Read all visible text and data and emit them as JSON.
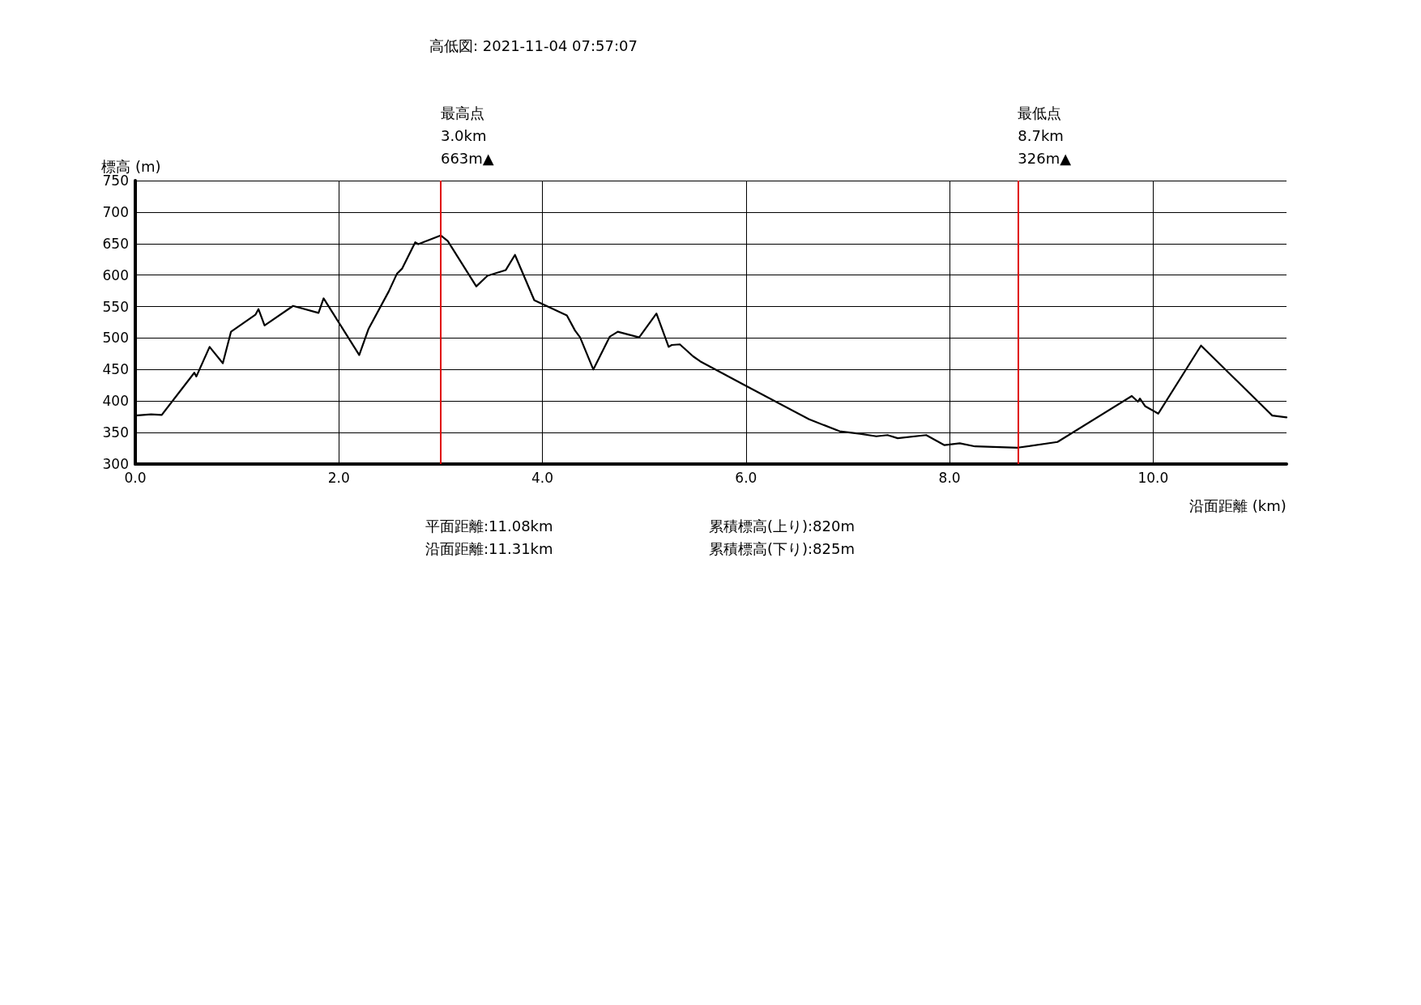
{
  "chart_data": {
    "type": "line",
    "title": "高低図: 2021-11-04 07:57:07",
    "xlabel": "沿面距離 (km)",
    "ylabel": "標高 (m)",
    "x": [
      0,
      0.155,
      0.26,
      0.58,
      0.6,
      0.73,
      0.86,
      0.94,
      1.18,
      1.21,
      1.27,
      1.55,
      1.8,
      1.85,
      2.2,
      2.29,
      2.49,
      2.57,
      2.62,
      2.75,
      2.78,
      3.0,
      3.07,
      3.35,
      3.46,
      3.64,
      3.73,
      3.92,
      4.24,
      4.32,
      4.37,
      4.5,
      4.66,
      4.74,
      4.95,
      5.12,
      5.24,
      5.27,
      5.35,
      5.48,
      5.55,
      6.0,
      6.62,
      6.92,
      7.12,
      7.28,
      7.39,
      7.49,
      7.77,
      7.95,
      8.1,
      8.25,
      8.67,
      9.06,
      9.79,
      9.85,
      9.87,
      9.92,
      10.05,
      10.47,
      11.17,
      11.31
    ],
    "series": [
      {
        "color": "#000000",
        "values": [
          377,
          379,
          378,
          445,
          439,
          486,
          460,
          510,
          537,
          546,
          520,
          551,
          540,
          563,
          473,
          514,
          574,
          602,
          610,
          652,
          649,
          663,
          654,
          582,
          599,
          608,
          632,
          560,
          536,
          512,
          501,
          450,
          502,
          510,
          501,
          539,
          486,
          489,
          490,
          471,
          463,
          424,
          371,
          352,
          348,
          344,
          346,
          341,
          346,
          330,
          333,
          328,
          326,
          335,
          408,
          399,
          404,
          392,
          380,
          488,
          377,
          374
        ]
      }
    ],
    "xlim": [
      0,
      11.31
    ],
    "xticks": [
      {
        "value": 0,
        "label": "0.0"
      },
      {
        "value": 2,
        "label": "2.0"
      },
      {
        "value": 4,
        "label": "4.0"
      },
      {
        "value": 6,
        "label": "6.0"
      },
      {
        "value": 8,
        "label": "8.0"
      },
      {
        "value": 10,
        "label": "10.0"
      }
    ],
    "ylim": [
      300,
      750
    ],
    "yticks": [
      300,
      350,
      400,
      450,
      500,
      550,
      600,
      650,
      700,
      750
    ],
    "ref_lines": [
      {
        "axis": "x",
        "value": 3.0,
        "label": "最高点\n3.0km\n663m▲",
        "color": "#e00000"
      },
      {
        "axis": "x",
        "value": 8.67,
        "label": "最低点\n8.7km\n326m▲",
        "color": "#e00000"
      }
    ],
    "annotations": [
      "平面距離:11.08km",
      "沿面距離:11.31km",
      "累積標高(上り):820m",
      "累積標高(下り):825m"
    ],
    "grid": true,
    "marker": "none",
    "line_style": "solid"
  }
}
